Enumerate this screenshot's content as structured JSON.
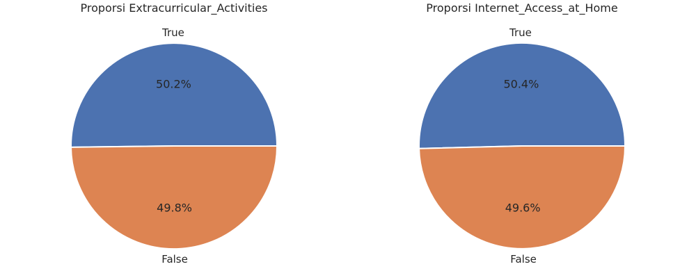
{
  "chart_data": [
    {
      "type": "pie",
      "title": "Proporsi Extracurricular_Activities",
      "labels": [
        "True",
        "False"
      ],
      "values": [
        50.2,
        49.8
      ],
      "value_labels": [
        "50.2%",
        "49.8%"
      ],
      "colors": [
        "#4c72b0",
        "#dd8452"
      ],
      "start_angle_deg": 0,
      "direction": "counterclockwise"
    },
    {
      "type": "pie",
      "title": "Proporsi Internet_Access_at_Home",
      "labels": [
        "True",
        "False"
      ],
      "values": [
        50.4,
        49.6
      ],
      "value_labels": [
        "50.4%",
        "49.6%"
      ],
      "colors": [
        "#4c72b0",
        "#dd8452"
      ],
      "start_angle_deg": 0,
      "direction": "counterclockwise"
    }
  ]
}
